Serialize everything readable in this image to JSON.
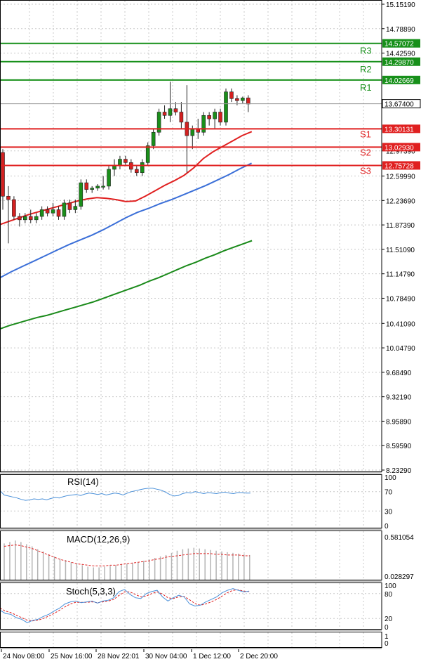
{
  "colors": {
    "background": "#ffffff",
    "grid": "#c8c8c8",
    "frame": "#000000",
    "bull_candle": "#1a8f1a",
    "bear_candle": "#d42020",
    "resistance": "#17901a",
    "support": "#e02020",
    "ma_fast": "#e02020",
    "ma_mid": "#3b6fd8",
    "ma_slow": "#1a8a1a",
    "rsi": "#4a90d9",
    "macd_hist": "#b4b4b4",
    "macd_signal": "#e02020",
    "stoch_main": "#4a90d9",
    "stoch_signal": "#e02020"
  },
  "chart_data": {
    "type": "candlestick",
    "price_axis": [
      "15.15190",
      "14.78890",
      "14.42590",
      "12.97390",
      "12.59990",
      "12.23690",
      "11.87390",
      "11.51090",
      "11.14790",
      "10.78490",
      "10.41090",
      "10.04790",
      "9.68490",
      "9.32190",
      "8.95890",
      "8.59590",
      "8.23290"
    ],
    "price_range": [
      8.2329,
      15.1519
    ],
    "time_labels": [
      "24 Nov 08:00",
      "25 Nov 16:00",
      "28 Nov 22:01",
      "30 Nov 04:00",
      "1 Dec 12:00",
      "2 Dec 20:00"
    ],
    "current_price": "13.67400",
    "levels": [
      {
        "name": "R3",
        "value": "14.57072",
        "kind": "resistance"
      },
      {
        "name": "R2",
        "value": "14.29870",
        "kind": "resistance"
      },
      {
        "name": "R1",
        "value": "14.02669",
        "kind": "resistance"
      },
      {
        "name": "S1",
        "value": "13.30131",
        "kind": "support"
      },
      {
        "name": "S2",
        "value": "13.02930",
        "kind": "support"
      },
      {
        "name": "S3",
        "value": "12.75728",
        "kind": "support"
      }
    ],
    "candles": [
      [
        12.95,
        13.0,
        12.1,
        12.3
      ],
      [
        12.3,
        12.45,
        11.6,
        12.25
      ],
      [
        12.25,
        12.3,
        11.95,
        12.0
      ],
      [
        12.0,
        12.05,
        11.85,
        11.95
      ],
      [
        11.95,
        12.05,
        11.9,
        12.0
      ],
      [
        12.0,
        12.1,
        11.9,
        11.95
      ],
      [
        11.95,
        12.05,
        11.9,
        12.0
      ],
      [
        12.0,
        12.15,
        11.95,
        12.1
      ],
      [
        12.1,
        12.15,
        12.0,
        12.05
      ],
      [
        12.05,
        12.2,
        12.0,
        12.1
      ],
      [
        12.1,
        12.15,
        11.95,
        12.0
      ],
      [
        12.0,
        12.25,
        11.95,
        12.2
      ],
      [
        12.2,
        12.25,
        12.05,
        12.1
      ],
      [
        12.1,
        12.25,
        12.05,
        12.15
      ],
      [
        12.15,
        12.55,
        12.1,
        12.5
      ],
      [
        12.5,
        12.55,
        12.35,
        12.4
      ],
      [
        12.4,
        12.45,
        12.35,
        12.42
      ],
      [
        12.42,
        12.48,
        12.38,
        12.45
      ],
      [
        12.45,
        12.6,
        12.4,
        12.45
      ],
      [
        12.45,
        12.75,
        12.4,
        12.7
      ],
      [
        12.7,
        12.85,
        12.6,
        12.75
      ],
      [
        12.75,
        12.9,
        12.7,
        12.85
      ],
      [
        12.85,
        12.9,
        12.75,
        12.8
      ],
      [
        12.8,
        12.85,
        12.65,
        12.7
      ],
      [
        12.7,
        12.75,
        12.6,
        12.65
      ],
      [
        12.65,
        12.85,
        12.6,
        12.8
      ],
      [
        12.8,
        13.1,
        12.75,
        13.05
      ],
      [
        13.05,
        13.3,
        13.0,
        13.25
      ],
      [
        13.25,
        13.6,
        13.2,
        13.55
      ],
      [
        13.55,
        13.65,
        13.45,
        13.5
      ],
      [
        13.5,
        14.0,
        13.4,
        13.6
      ],
      [
        13.6,
        13.7,
        13.5,
        13.55
      ],
      [
        13.55,
        13.7,
        13.3,
        13.4
      ],
      [
        13.4,
        13.95,
        12.65,
        13.2
      ],
      [
        13.2,
        13.35,
        13.0,
        13.3
      ],
      [
        13.3,
        13.45,
        13.15,
        13.25
      ],
      [
        13.25,
        13.55,
        13.2,
        13.5
      ],
      [
        13.5,
        13.55,
        13.35,
        13.45
      ],
      [
        13.45,
        13.6,
        13.3,
        13.55
      ],
      [
        13.55,
        13.6,
        13.35,
        13.4
      ],
      [
        13.4,
        13.9,
        13.35,
        13.85
      ],
      [
        13.85,
        13.9,
        13.7,
        13.75
      ],
      [
        13.75,
        13.8,
        13.65,
        13.72
      ],
      [
        13.72,
        13.78,
        13.68,
        13.76
      ],
      [
        13.76,
        13.8,
        13.55,
        13.67
      ]
    ],
    "ma_fast": [
      11.88,
      11.93,
      11.98,
      12.03,
      12.07,
      12.11,
      12.15,
      12.19,
      12.23,
      12.26,
      12.28,
      12.27,
      12.25,
      12.22,
      12.23,
      12.3,
      12.38,
      12.46,
      12.53,
      12.61,
      12.72,
      12.86,
      12.96,
      13.04,
      13.12,
      13.2,
      13.26
    ],
    "ma_mid": [
      11.09,
      11.18,
      11.26,
      11.34,
      11.42,
      11.5,
      11.58,
      11.65,
      11.72,
      11.8,
      11.89,
      11.98,
      12.06,
      12.12,
      12.19,
      12.25,
      12.32,
      12.39,
      12.46,
      12.54,
      12.62,
      12.71,
      12.79
    ],
    "ma_slow": [
      10.33,
      10.38,
      10.42,
      10.46,
      10.5,
      10.53,
      10.57,
      10.61,
      10.65,
      10.69,
      10.73,
      10.78,
      10.83,
      10.88,
      10.93,
      10.98,
      11.04,
      11.09,
      11.15,
      11.21,
      11.27,
      11.32,
      11.38,
      11.43,
      11.49,
      11.54,
      11.59,
      11.64
    ],
    "rsi": {
      "label": "RSI(14)",
      "axis": [
        "100",
        "70",
        "30",
        "0"
      ],
      "values": [
        72,
        63,
        61,
        59,
        57,
        54,
        52,
        53,
        55,
        54,
        55,
        53,
        56,
        58,
        57,
        60,
        62,
        63,
        64,
        62,
        65,
        67,
        66,
        64,
        66,
        63,
        65,
        67,
        66,
        63,
        67,
        70,
        72,
        74,
        76,
        77,
        77,
        75,
        73,
        69,
        64,
        61,
        62,
        66,
        68,
        67,
        70,
        68,
        66,
        68,
        67,
        66,
        68,
        69,
        67,
        66,
        68,
        68,
        67,
        67
      ]
    },
    "macd": {
      "label": "MACD(12,26,9)",
      "axis": [
        "0.581054",
        "0.028297"
      ],
      "histogram": [
        0.48,
        0.5,
        0.52,
        0.5,
        0.47,
        0.44,
        0.4,
        0.37,
        0.33,
        0.3,
        0.27,
        0.25,
        0.22,
        0.2,
        0.18,
        0.16,
        0.15,
        0.15,
        0.16,
        0.17,
        0.18,
        0.19,
        0.2,
        0.21,
        0.22,
        0.24,
        0.26,
        0.28,
        0.3,
        0.32,
        0.35,
        0.38,
        0.4,
        0.41,
        0.42,
        0.41,
        0.4,
        0.39,
        0.38,
        0.37,
        0.36,
        0.35,
        0.34,
        0.33,
        0.32
      ],
      "signal": [
        0.44,
        0.45,
        0.46,
        0.45,
        0.43,
        0.41,
        0.38,
        0.35,
        0.32,
        0.29,
        0.26,
        0.24,
        0.22,
        0.2,
        0.19,
        0.18,
        0.17,
        0.17,
        0.17,
        0.18,
        0.18,
        0.19,
        0.2,
        0.21,
        0.22,
        0.23,
        0.24,
        0.26,
        0.27,
        0.29,
        0.3,
        0.31,
        0.32,
        0.33,
        0.34,
        0.34,
        0.34,
        0.34,
        0.33,
        0.33,
        0.32,
        0.32,
        0.32,
        0.31,
        0.31
      ]
    },
    "stoch": {
      "label": "Stoch(5,3,3)",
      "axis": [
        "100",
        "80",
        "20",
        "0"
      ],
      "main": [
        40,
        32,
        30,
        22,
        18,
        10,
        15,
        18,
        25,
        30,
        38,
        45,
        55,
        60,
        62,
        58,
        60,
        62,
        57,
        62,
        64,
        70,
        85,
        90,
        78,
        70,
        68,
        80,
        85,
        88,
        72,
        62,
        70,
        76,
        72,
        55,
        50,
        52,
        60,
        66,
        72,
        82,
        88,
        92,
        88,
        84,
        86
      ],
      "signal": [
        45,
        38,
        34,
        28,
        22,
        16,
        14,
        16,
        20,
        26,
        32,
        40,
        48,
        55,
        59,
        59,
        59,
        60,
        58,
        60,
        62,
        66,
        76,
        84,
        84,
        78,
        72,
        74,
        80,
        84,
        79,
        70,
        68,
        72,
        73,
        65,
        56,
        52,
        55,
        60,
        66,
        74,
        82,
        88,
        89,
        86,
        85
      ]
    },
    "ohlc_fields": [
      "open",
      "high",
      "low",
      "close"
    ]
  }
}
